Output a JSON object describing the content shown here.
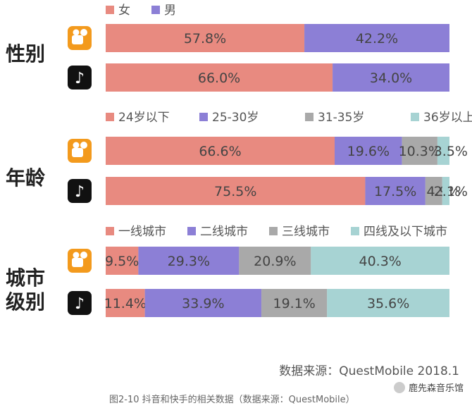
{
  "chart_data": [
    {
      "type": "bar",
      "group_label": "性别",
      "legend": [
        "女",
        "男"
      ],
      "colors": [
        "#e88a80",
        "#8c7fd6"
      ],
      "rows": [
        {
          "app_icon": "kuaishou-icon",
          "values": [
            57.8,
            42.2
          ],
          "labels": [
            "57.8%",
            "42.2%"
          ]
        },
        {
          "app_icon": "douyin-icon",
          "values": [
            66.0,
            34.0
          ],
          "labels": [
            "66.0%",
            "34.0%"
          ]
        }
      ]
    },
    {
      "type": "bar",
      "group_label": "年龄",
      "legend": [
        "24岁以下",
        "25-30岁",
        "31-35岁",
        "36岁以上"
      ],
      "colors": [
        "#e88a80",
        "#8c7fd6",
        "#a9a9a9",
        "#a7d3d3"
      ],
      "rows": [
        {
          "app_icon": "kuaishou-icon",
          "values": [
            66.6,
            19.6,
            10.3,
            3.5
          ],
          "labels": [
            "66.6%",
            "19.6%",
            "10.3%",
            "3.5%"
          ]
        },
        {
          "app_icon": "douyin-icon",
          "values": [
            75.5,
            17.5,
            4.9,
            2.1
          ],
          "labels": [
            "75.5%",
            "17.5%",
            "4.9%",
            "2.1%"
          ]
        }
      ]
    },
    {
      "type": "bar",
      "group_label": "城市级别",
      "legend": [
        "一线城市",
        "二线城市",
        "三线城市",
        "四线及以下城市"
      ],
      "colors": [
        "#e88a80",
        "#8c7fd6",
        "#a9a9a9",
        "#a7d3d3"
      ],
      "rows": [
        {
          "app_icon": "kuaishou-icon",
          "values": [
            9.5,
            29.3,
            20.9,
            40.3
          ],
          "labels": [
            "9.5%",
            "29.3%",
            "20.9%",
            "40.3%"
          ]
        },
        {
          "app_icon": "douyin-icon",
          "values": [
            11.4,
            33.9,
            19.1,
            35.6
          ],
          "labels": [
            "11.4%",
            "33.9%",
            "19.1%",
            "35.6%"
          ]
        }
      ]
    }
  ],
  "group_labels": {
    "gender": "性别",
    "age": "年龄",
    "city_line1": "城市",
    "city_line2": "级别"
  },
  "source": "数据来源：QuestMobile 2018.1",
  "caption": "图2-10 抖音和快手的相关数据（数据来源：QuestMobile）",
  "watermark": "鹿先森音乐馆"
}
